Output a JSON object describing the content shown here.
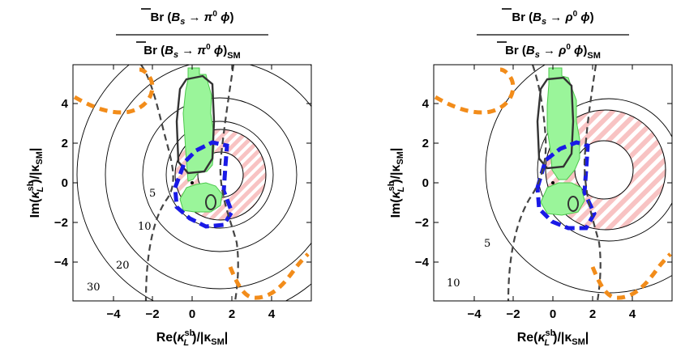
{
  "figure": {
    "axes": {
      "xlabel": {
        "pre": "Re(",
        "kappa": "κ",
        "sup": "sb",
        "sub": "L",
        "post": ")/|κ",
        "sm": "SM",
        "end": "|"
      },
      "ylabel": {
        "pre": "Im(",
        "kappa": "κ",
        "sup": "sb",
        "sub": "L",
        "post": ")/|κ",
        "sm": "SM",
        "end": "|"
      },
      "x_ticks": [
        "−4",
        "−2",
        "0",
        "2",
        "4"
      ],
      "y_ticks": [
        "4",
        "2",
        "0",
        "−2",
        "−4"
      ]
    },
    "panels": [
      {
        "id": "left",
        "title": {
          "br": "Br",
          "B": "B",
          "s": "s",
          "arrow": " → ",
          "meson": "π",
          "meson_sup": "0",
          "phi": "ϕ",
          "sm": "SM"
        },
        "contour_labels": [
          "5",
          "10",
          "20",
          "30"
        ]
      },
      {
        "id": "right",
        "title": {
          "br": "Br",
          "B": "B",
          "s": "s",
          "arrow": " → ",
          "meson": "ρ",
          "meson_sup": "0",
          "phi": "ϕ",
          "sm": "SM"
        },
        "contour_labels": [
          "5",
          "10"
        ]
      }
    ]
  },
  "chart_data": [
    {
      "type": "contour",
      "panel": "left",
      "title": "Br(B̄s → π0 ϕ) / Br(B̄s → π0 ϕ)_SM",
      "xlabel": "Re(κL^sb)/|κSM|",
      "ylabel": "Im(κL^sb)/|κSM|",
      "xlim": [
        -6,
        6
      ],
      "ylim": [
        -6,
        6
      ],
      "x_ticks": [
        -4,
        -2,
        0,
        2,
        4
      ],
      "y_ticks": [
        -4,
        -2,
        0,
        2,
        4
      ],
      "ratio_contours": [
        {
          "label": "5",
          "center": [
            1.4,
            0.3
          ],
          "radius": 2.7
        },
        {
          "label": "10",
          "center": [
            1.4,
            0.3
          ],
          "radius": 3.9
        },
        {
          "label": "20",
          "center": [
            1.4,
            0.3
          ],
          "radius": 5.8
        },
        {
          "label": "30",
          "center": [
            1.4,
            0.3
          ],
          "radius": 7.2
        }
      ],
      "sm_point": [
        0,
        0
      ],
      "hatched_ring": {
        "center": [
          1.5,
          0.4
        ],
        "r_inner": 1.1,
        "r_outer": 2.2
      },
      "blue_dashed_region": {
        "x_range": [
          -0.9,
          2.0
        ],
        "y_range": [
          -2.0,
          2.1
        ]
      }
    },
    {
      "type": "contour",
      "panel": "right",
      "title": "Br(B̄s → ρ0 ϕ) / Br(B̄s → ρ0 ϕ)_SM",
      "xlabel": "Re(κL^sb)/|κSM|",
      "ylabel": "Im(κL^sb)/|κSM|",
      "xlim": [
        -6,
        6
      ],
      "ylim": [
        -6,
        6
      ],
      "x_ticks": [
        -4,
        -2,
        0,
        2,
        4
      ],
      "y_ticks": [
        -4,
        -2,
        0,
        2,
        4
      ],
      "ratio_contours": [
        {
          "label": "5",
          "center": [
            2.8,
            0.7
          ],
          "radius": 3.6
        },
        {
          "label": "10",
          "center": [
            2.8,
            0.7
          ],
          "radius": 6.2
        }
      ],
      "sm_point": [
        0,
        0
      ],
      "hatched_ring": {
        "center": [
          2.6,
          0.6
        ],
        "r_inner": 1.5,
        "r_outer": 3.0
      },
      "blue_dashed_region": {
        "x_range": [
          -0.9,
          2.0
        ],
        "y_range": [
          -2.2,
          2.2
        ]
      }
    }
  ]
}
